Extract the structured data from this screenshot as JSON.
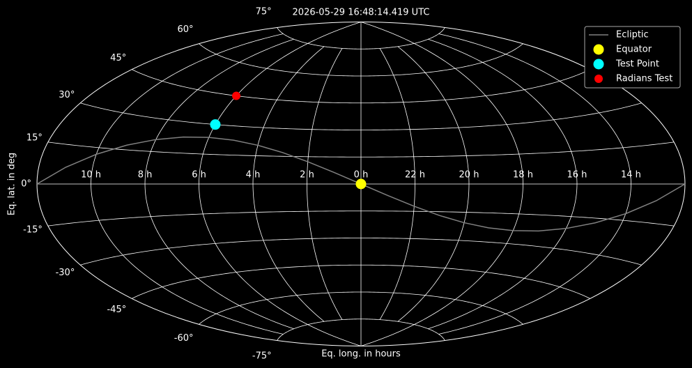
{
  "chart_data": {
    "type": "aitoff",
    "title": "2026-05-29 16:48:14.419 UTC",
    "x_label": "Eq. long. in hours",
    "y_label": "Eq. lat. in deg",
    "xlim": [
      12,
      -12
    ],
    "ylim": [
      -90,
      90
    ],
    "grid": true,
    "legend": "upper right",
    "xticks": [
      {
        "value": 10,
        "label": "10 h"
      },
      {
        "value": 8,
        "label": "8 h"
      },
      {
        "value": 6,
        "label": "6 h"
      },
      {
        "value": 4,
        "label": "4 h"
      },
      {
        "value": 2,
        "label": "2 h"
      },
      {
        "value": 0,
        "label": "0 h"
      },
      {
        "value": 22,
        "label": "22 h"
      },
      {
        "value": 20,
        "label": "20 h"
      },
      {
        "value": 18,
        "label": "18 h"
      },
      {
        "value": 16,
        "label": "16 h"
      },
      {
        "value": 14,
        "label": "14 h"
      }
    ],
    "yticks": [
      {
        "value": -75,
        "label": "-75°"
      },
      {
        "value": -60,
        "label": "-60°"
      },
      {
        "value": -45,
        "label": "-45°"
      },
      {
        "value": -30,
        "label": "-30°"
      },
      {
        "value": -15,
        "label": "-15°"
      },
      {
        "value": 0,
        "label": "0°"
      },
      {
        "value": 15,
        "label": "15°"
      },
      {
        "value": 30,
        "label": "30°"
      },
      {
        "value": 45,
        "label": "45°"
      },
      {
        "value": 60,
        "label": "60°"
      },
      {
        "value": 75,
        "label": "75°"
      }
    ],
    "series": [
      {
        "name": "Ecliptic",
        "kind": "line",
        "color": "#808080",
        "x": [
          -12,
          -11,
          -10,
          -9,
          -8,
          -7,
          -6,
          -5,
          -4,
          -3,
          -2,
          -1,
          0,
          1,
          2,
          3,
          4,
          5,
          6,
          7,
          8,
          9,
          10,
          11,
          12
        ],
        "values": [
          0,
          -6.4,
          -12.23,
          -17.05,
          -20.58,
          -22.73,
          -23.44,
          -22.73,
          -20.58,
          -17.05,
          -12.23,
          -6.4,
          0,
          6.4,
          12.23,
          17.05,
          20.58,
          22.73,
          23.44,
          22.73,
          20.58,
          17.05,
          12.23,
          6.4,
          0
        ]
      },
      {
        "name": "Equator",
        "kind": "point",
        "color": "yellow",
        "x": [
          0
        ],
        "values": [
          0
        ]
      },
      {
        "name": "Test Point",
        "kind": "point",
        "color": "cyan",
        "x": [
          6
        ],
        "values": [
          30
        ]
      },
      {
        "name": "Radians Test",
        "kind": "point",
        "color": "red",
        "x": [
          6
        ],
        "values": [
          45
        ]
      }
    ]
  }
}
